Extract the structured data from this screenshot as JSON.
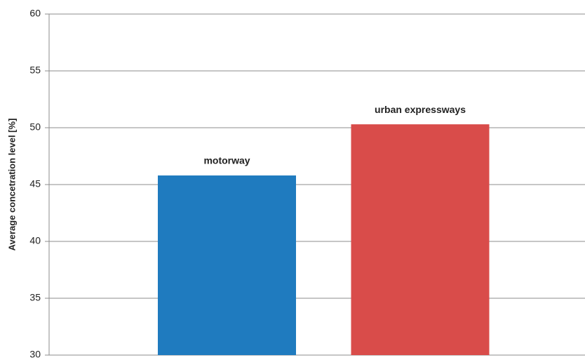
{
  "chart_data": {
    "type": "bar",
    "y_label": "Average concetration level [%]",
    "categories": [
      "motorway",
      "urban expressways"
    ],
    "values": [
      45.8,
      50.3
    ],
    "colors": [
      "#1f7bbf",
      "#d94c4a"
    ],
    "ylim": [
      30,
      60
    ],
    "yticks": [
      30,
      35,
      40,
      45,
      50,
      55,
      60
    ],
    "grid": true
  }
}
